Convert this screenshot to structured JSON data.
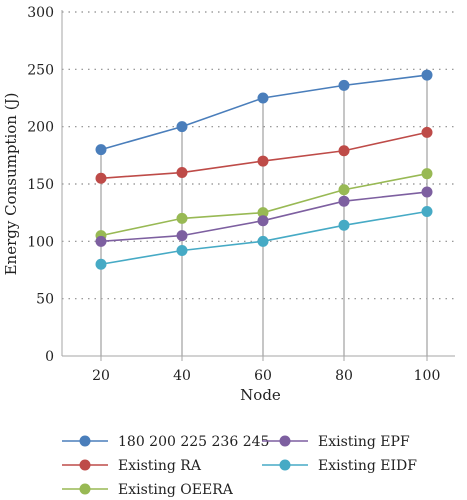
{
  "chart_data": {
    "type": "line",
    "title": "",
    "xlabel": "Node",
    "ylabel": "Energy Consumption (J)",
    "x": [
      20,
      40,
      60,
      80,
      100
    ],
    "x_ticks": [
      "20",
      "40",
      "60",
      "80",
      "100"
    ],
    "ylim": [
      0,
      300
    ],
    "y_ticks": [
      0,
      50,
      100,
      150,
      200,
      250,
      300
    ],
    "grid": "horizontal dotted",
    "legend_position": "bottom",
    "series": [
      {
        "name": "180 200 225 236 245",
        "color": "#4a7ebb",
        "values": [
          180,
          200,
          225,
          236,
          245
        ]
      },
      {
        "name": "Existing RA",
        "color": "#be4b48",
        "values": [
          155,
          160,
          170,
          179,
          195
        ]
      },
      {
        "name": "Existing OEERA",
        "color": "#98b954",
        "values": [
          105,
          120,
          125,
          145,
          159
        ]
      },
      {
        "name": "Existing EPF",
        "color": "#7d5fa0",
        "values": [
          100,
          105,
          118,
          135,
          143
        ]
      },
      {
        "name": "Existing EIDF",
        "color": "#46aac5",
        "values": [
          80,
          92,
          100,
          114,
          126
        ]
      }
    ]
  }
}
